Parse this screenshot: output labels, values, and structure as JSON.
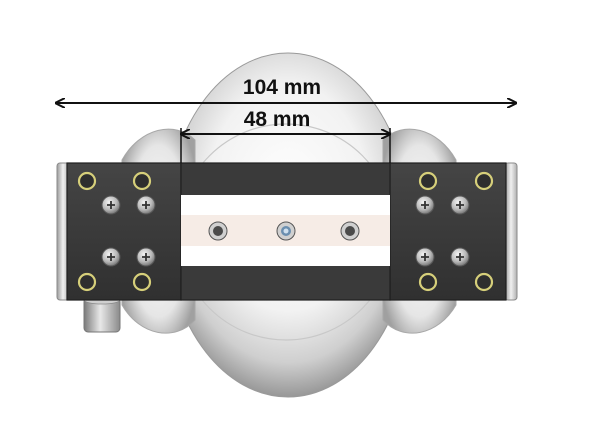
{
  "dimensions": {
    "overall_width": "104 mm",
    "inner_width": "48 mm"
  },
  "colors": {
    "plate": "#3a3a3a",
    "plate_edge": "#222222",
    "insert": "#f6ece6",
    "stripe": "#ffffff",
    "housing_light": "#ffffff",
    "housing_shadow": "#bdbdbd",
    "hole_ring": "#d6cf7a",
    "arrow": "#111111"
  },
  "icons": {
    "mount_hole": "ring-hole-icon",
    "screw": "phillips-screw-icon",
    "insert_screw": "socket-screw-icon"
  }
}
